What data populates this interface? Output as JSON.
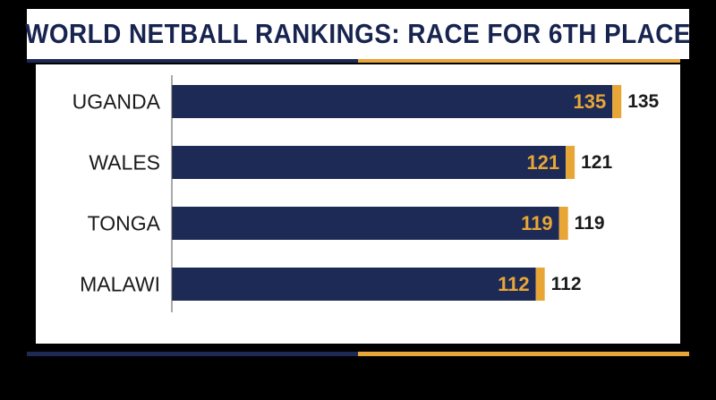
{
  "chart_data": {
    "type": "bar",
    "orientation": "horizontal",
    "title": "WORLD NETBALL RANKINGS: RACE FOR 6TH PLACE",
    "categories": [
      "UGANDA",
      "WALES",
      "TONGA",
      "MALAWI"
    ],
    "values": [
      135,
      121,
      119,
      112
    ],
    "xlim": [
      0,
      150
    ],
    "grid": false,
    "data_labels": "inside-end and outside-end"
  },
  "colors": {
    "navy": "#1c2a55",
    "gold": "#e8a636",
    "background": "#000000",
    "panel": "#ffffff"
  }
}
